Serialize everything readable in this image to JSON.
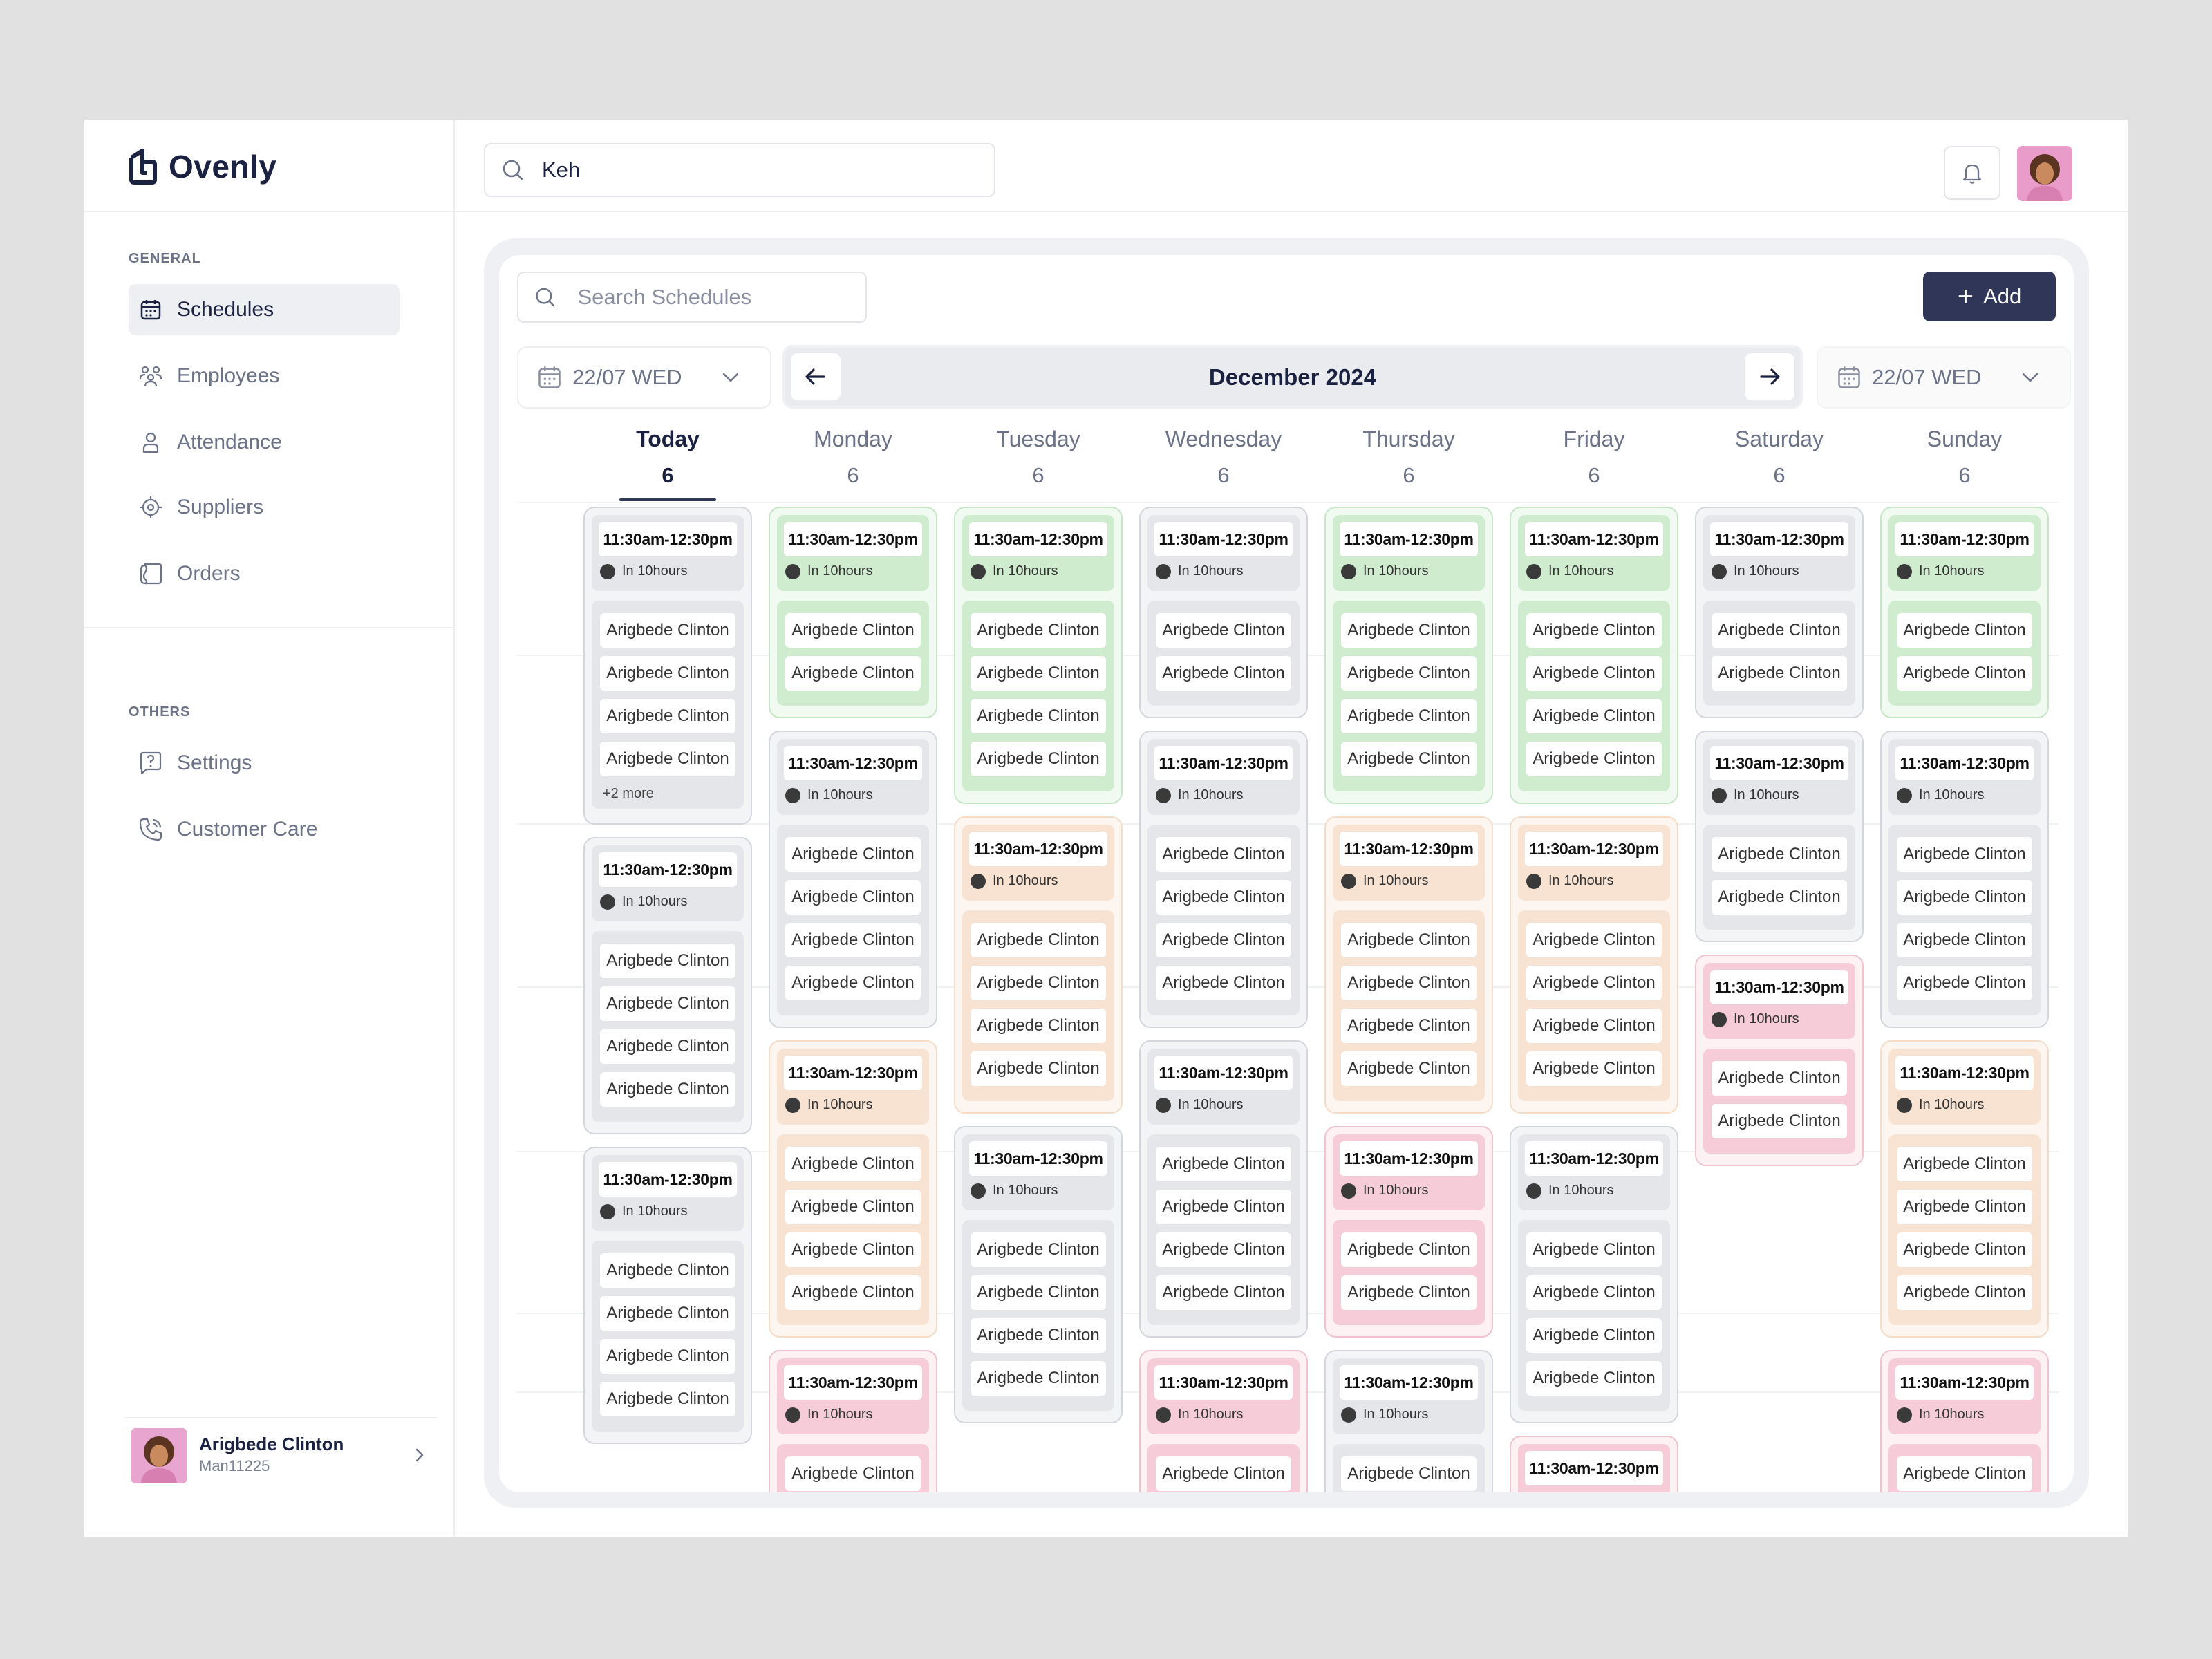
{
  "app": {
    "name": "Ovenly"
  },
  "sidebar": {
    "general_label": "GENERAL",
    "general_items": [
      {
        "label": "Schedules",
        "icon": "calendar-icon",
        "active": true
      },
      {
        "label": "Employees",
        "icon": "users-icon",
        "active": false
      },
      {
        "label": "Attendance",
        "icon": "person-icon",
        "active": false
      },
      {
        "label": "Suppliers",
        "icon": "target-icon",
        "active": false
      },
      {
        "label": "Orders",
        "icon": "orders-icon",
        "active": false
      }
    ],
    "others_label": "OTHERS",
    "other_items": [
      {
        "label": "Settings",
        "icon": "help-chat-icon"
      },
      {
        "label": "Customer Care",
        "icon": "phone-icon"
      }
    ],
    "user": {
      "name": "Arigbede Clinton",
      "id": "Man11225"
    }
  },
  "topbar": {
    "search_value": "Keh"
  },
  "schedules": {
    "search_placeholder": "Search Schedules",
    "add_label": "Add",
    "date_from": "22/07 WED",
    "date_to": "22/07 WED",
    "month": "December 2024",
    "days": [
      {
        "name": "Today",
        "num": "6"
      },
      {
        "name": "Monday",
        "num": "6"
      },
      {
        "name": "Tuesday",
        "num": "6"
      },
      {
        "name": "Wednesday",
        "num": "6"
      },
      {
        "name": "Thursday",
        "num": "6"
      },
      {
        "name": "Friday",
        "num": "6"
      },
      {
        "name": "Saturday",
        "num": "6"
      },
      {
        "name": "Sunday",
        "num": "6"
      }
    ],
    "shift_time": "11:30am-12:30pm",
    "shift_status": "In 10hours",
    "employee": "Arigbede Clinton",
    "more_label": "+2 more",
    "colors": {
      "gray": "#e4e6ea",
      "green": "#cfeccf",
      "orange": "#f8e3d3",
      "pink": "#f5ccd7",
      "accent": "#2f3657"
    },
    "columns": [
      [
        {
          "c": "gray",
          "n": 4,
          "more": true
        },
        {
          "c": "gray",
          "n": 4
        },
        {
          "c": "gray",
          "n": 4
        }
      ],
      [
        {
          "c": "green",
          "n": 2
        },
        {
          "c": "gray",
          "n": 4
        },
        {
          "c": "orange",
          "n": 4
        },
        {
          "c": "pink",
          "n": 2
        }
      ],
      [
        {
          "c": "green",
          "n": 4
        },
        {
          "c": "orange",
          "n": 4
        },
        {
          "c": "gray",
          "n": 4
        }
      ],
      [
        {
          "c": "gray",
          "n": 2
        },
        {
          "c": "gray",
          "n": 4
        },
        {
          "c": "gray",
          "n": 4
        },
        {
          "c": "pink",
          "n": 2
        }
      ],
      [
        {
          "c": "green",
          "n": 4
        },
        {
          "c": "orange",
          "n": 4
        },
        {
          "c": "pink",
          "n": 2
        },
        {
          "c": "gray",
          "n": 2
        }
      ],
      [
        {
          "c": "green",
          "n": 4
        },
        {
          "c": "orange",
          "n": 4
        },
        {
          "c": "gray",
          "n": 4
        },
        {
          "c": "pink",
          "n": 0
        }
      ],
      [
        {
          "c": "gray",
          "n": 2
        },
        {
          "c": "gray",
          "n": 2
        },
        {
          "c": "pink",
          "n": 2
        }
      ],
      [
        {
          "c": "green",
          "n": 2
        },
        {
          "c": "gray",
          "n": 4
        },
        {
          "c": "orange",
          "n": 4
        },
        {
          "c": "pink",
          "n": 2
        }
      ]
    ]
  }
}
